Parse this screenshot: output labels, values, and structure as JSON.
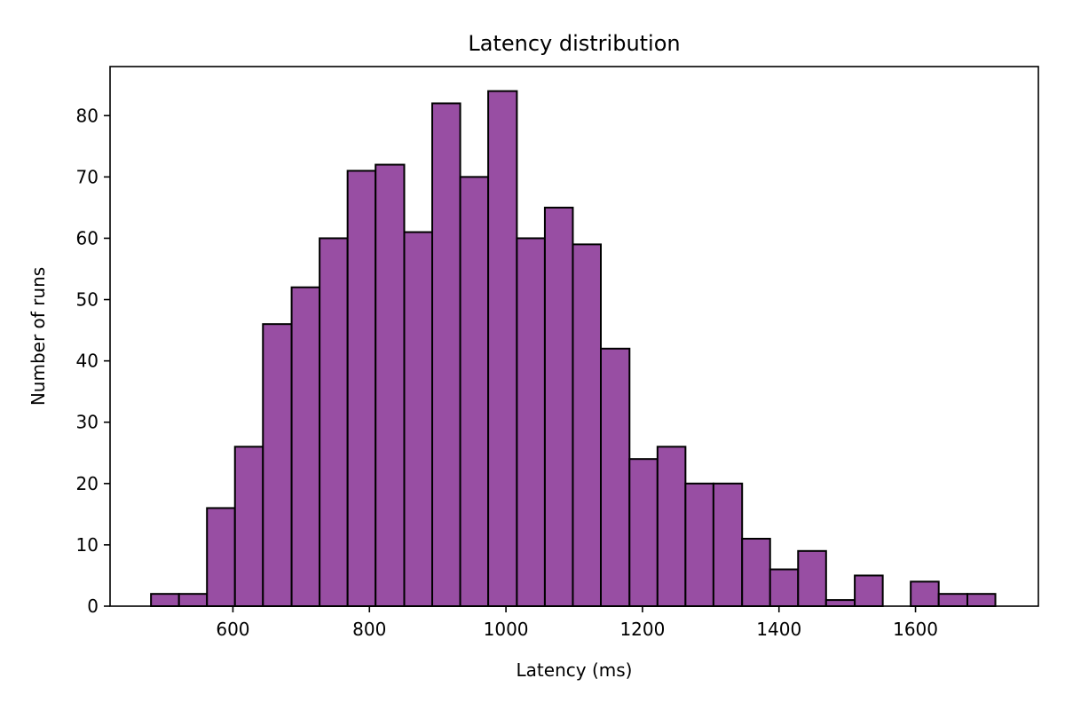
{
  "chart_data": {
    "type": "bar",
    "title": "Latency distribution",
    "xlabel": "Latency (ms)",
    "ylabel": "Number of runs",
    "xlim": [
      420,
      1780
    ],
    "ylim": [
      0,
      88
    ],
    "xticks": [
      600,
      800,
      1000,
      1200,
      1400,
      1600
    ],
    "yticks": [
      0,
      10,
      20,
      30,
      40,
      50,
      60,
      70,
      80
    ],
    "bins": [
      {
        "start": 480,
        "end": 521,
        "count": 2
      },
      {
        "start": 521,
        "end": 562,
        "count": 2
      },
      {
        "start": 562,
        "end": 603,
        "count": 16
      },
      {
        "start": 603,
        "end": 644,
        "count": 26
      },
      {
        "start": 644,
        "end": 686,
        "count": 46
      },
      {
        "start": 686,
        "end": 727,
        "count": 52
      },
      {
        "start": 727,
        "end": 768,
        "count": 60
      },
      {
        "start": 768,
        "end": 809,
        "count": 71
      },
      {
        "start": 809,
        "end": 851,
        "count": 72
      },
      {
        "start": 851,
        "end": 892,
        "count": 61
      },
      {
        "start": 892,
        "end": 933,
        "count": 82
      },
      {
        "start": 933,
        "end": 974,
        "count": 70
      },
      {
        "start": 974,
        "end": 1016,
        "count": 84
      },
      {
        "start": 1016,
        "end": 1057,
        "count": 60
      },
      {
        "start": 1057,
        "end": 1098,
        "count": 65
      },
      {
        "start": 1098,
        "end": 1139,
        "count": 59
      },
      {
        "start": 1139,
        "end": 1181,
        "count": 42
      },
      {
        "start": 1181,
        "end": 1222,
        "count": 24
      },
      {
        "start": 1222,
        "end": 1263,
        "count": 26
      },
      {
        "start": 1263,
        "end": 1304,
        "count": 20
      },
      {
        "start": 1304,
        "end": 1346,
        "count": 20
      },
      {
        "start": 1346,
        "end": 1387,
        "count": 11
      },
      {
        "start": 1387,
        "end": 1428,
        "count": 6
      },
      {
        "start": 1428,
        "end": 1469,
        "count": 9
      },
      {
        "start": 1469,
        "end": 1511,
        "count": 1
      },
      {
        "start": 1511,
        "end": 1552,
        "count": 5
      },
      {
        "start": 1552,
        "end": 1593,
        "count": 0
      },
      {
        "start": 1593,
        "end": 1634,
        "count": 4
      },
      {
        "start": 1634,
        "end": 1676,
        "count": 2
      },
      {
        "start": 1676,
        "end": 1717,
        "count": 2
      }
    ],
    "bar_color": "#984ea3",
    "edge_color": "#000000",
    "grid": false,
    "legend": null
  }
}
